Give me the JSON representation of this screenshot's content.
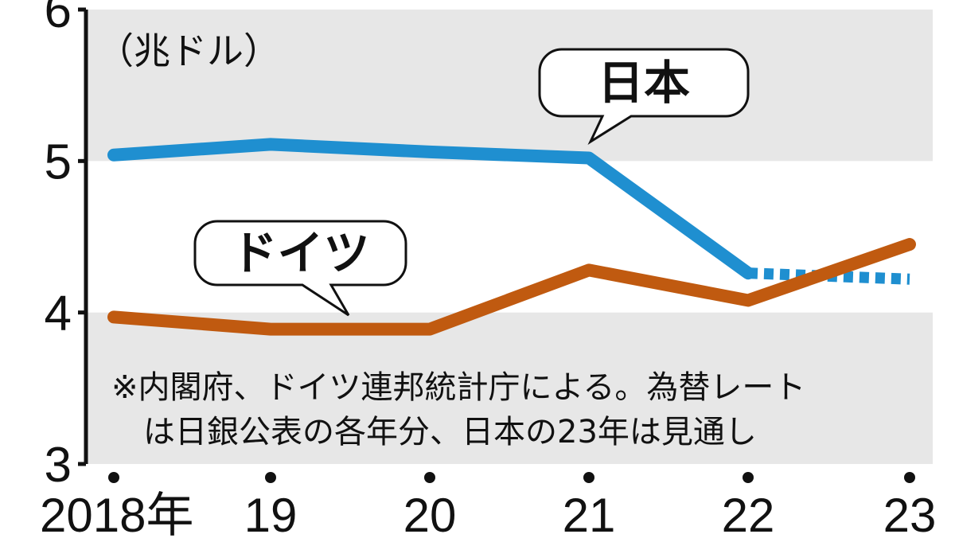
{
  "chart_data": {
    "type": "line",
    "ylabel": "（兆ドル）",
    "ylim": [
      3,
      6
    ],
    "yticks": [
      "3",
      "4",
      "5",
      "6"
    ],
    "x": [
      "2018年",
      "19",
      "20",
      "21",
      "22",
      "23"
    ],
    "series": [
      {
        "name": "日本",
        "color": "#1f8fd0",
        "values": [
          5.04,
          5.11,
          5.06,
          5.02,
          4.26,
          4.22
        ],
        "projected_from_index": 4
      },
      {
        "name": "ドイツ",
        "color": "#c05a10",
        "values": [
          3.97,
          3.89,
          3.89,
          4.28,
          4.08,
          4.45
        ]
      }
    ],
    "shaded_bands": [
      [
        3,
        4
      ],
      [
        5,
        6
      ]
    ],
    "note": [
      "※内閣府、ドイツ連邦統計庁による。為替レート",
      "は日銀公表の各年分、日本の23年は見通し"
    ]
  }
}
